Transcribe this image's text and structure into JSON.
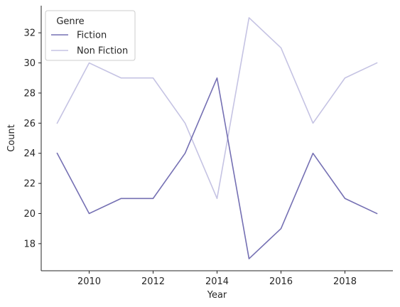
{
  "chart_data": {
    "type": "line",
    "title": "",
    "xlabel": "Year",
    "ylabel": "Count",
    "x": [
      2009,
      2010,
      2011,
      2012,
      2013,
      2014,
      2015,
      2016,
      2017,
      2018,
      2019
    ],
    "xlim": [
      2008.5,
      2019.5
    ],
    "ylim": [
      16.2,
      33.8
    ],
    "xticks": [
      2010,
      2012,
      2014,
      2016,
      2018
    ],
    "yticks": [
      18,
      20,
      22,
      24,
      26,
      28,
      30,
      32
    ],
    "grid": false,
    "legend": {
      "title": "Genre",
      "placement": "top-left"
    },
    "series": [
      {
        "name": "Fiction",
        "color": "#7570b3",
        "values": [
          24,
          20,
          21,
          21,
          24,
          29,
          17,
          19,
          24,
          21,
          20
        ]
      },
      {
        "name": "Non Fiction",
        "color": "#c5c3e3",
        "values": [
          26,
          30,
          29,
          29,
          26,
          21,
          33,
          31,
          26,
          29,
          30
        ]
      }
    ]
  }
}
